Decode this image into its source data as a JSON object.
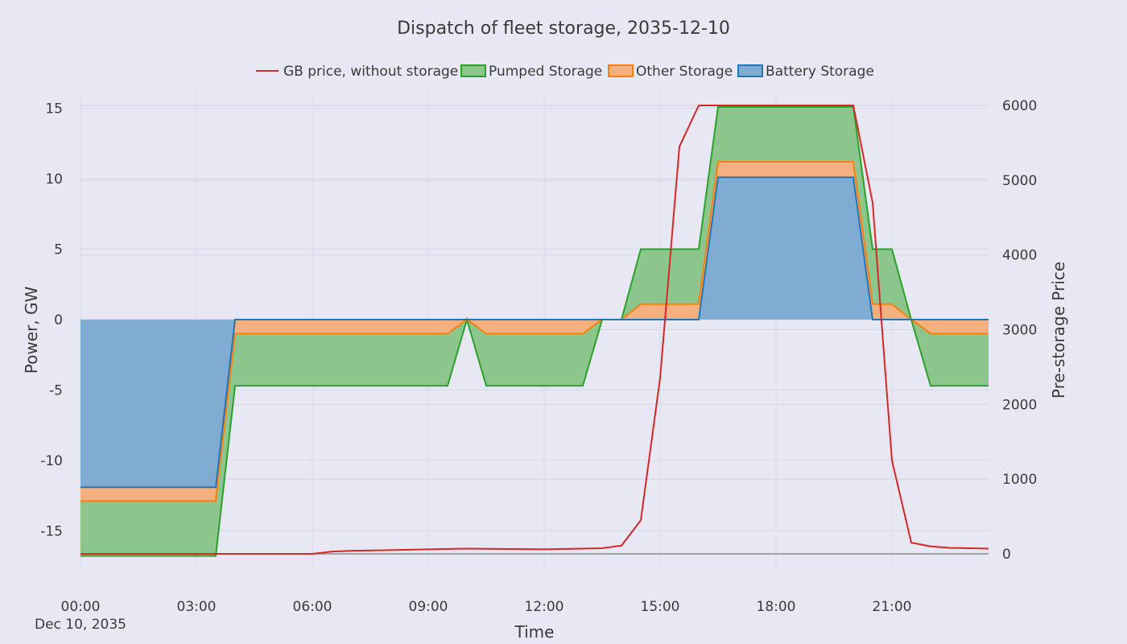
{
  "chart_data": {
    "type": "area",
    "title": "Dispatch of fleet storage, 2035-12-10",
    "xlabel": "Time",
    "ylabel_left": "Power, GW",
    "ylabel_right": "Pre-storage Price",
    "x_tick_labels": [
      "00:00",
      "03:00",
      "06:00",
      "09:00",
      "12:00",
      "15:00",
      "18:00",
      "21:00"
    ],
    "x_date_label": "Dec 10, 2035",
    "x_range_hours": [
      0,
      23.5
    ],
    "y_left_range": [
      -16.5,
      16
    ],
    "y_left_ticks": [
      15,
      10,
      5,
      0,
      -5,
      -10,
      -15
    ],
    "y_right_range": [
      0,
      6000
    ],
    "y_right_ticks": [
      6000,
      5000,
      4000,
      3000,
      2000,
      1000,
      0
    ],
    "legend": {
      "placement": "top",
      "entries": [
        "GB price, without storage",
        "Pumped Storage",
        "Other Storage",
        "Battery Storage"
      ]
    },
    "colors": {
      "price": "#d62728",
      "pumped_fill": "#8cc68d",
      "pumped_line": "#2ca02c",
      "other_fill": "#f5b07f",
      "other_line": "#ff7f0e",
      "battery_fill": "#80abd2",
      "battery_line": "#1f77b4",
      "background": "#e8e8f4"
    },
    "x_hours": [
      0,
      3.5,
      4,
      9.5,
      10,
      10.5,
      13,
      13.5,
      14,
      14.5,
      16,
      16.5,
      20,
      20.5,
      21,
      21.5,
      22,
      23.5
    ],
    "series": [
      {
        "name": "Battery Storage",
        "values": [
          -11.9,
          -11.9,
          0,
          0,
          0,
          0,
          0,
          0,
          0,
          0,
          0,
          10.1,
          10.1,
          0,
          0,
          0,
          0,
          0
        ]
      },
      {
        "name": "Other Storage",
        "values": [
          -0.98,
          -0.98,
          -1.0,
          -1.0,
          0,
          -1.0,
          -1.0,
          0,
          0,
          1.1,
          1.1,
          1.1,
          1.1,
          1.1,
          1.1,
          0,
          -1.0,
          -1.0
        ]
      },
      {
        "name": "Pumped Storage",
        "values": [
          -3.9,
          -3.9,
          -3.7,
          -3.7,
          0,
          -3.7,
          -3.7,
          0,
          0,
          3.9,
          3.9,
          3.9,
          3.9,
          3.9,
          3.9,
          0,
          -3.7,
          -3.7
        ]
      }
    ],
    "price_series": {
      "name": "GB price, without storage",
      "x": [
        0,
        1,
        2,
        3,
        4,
        5,
        6,
        6.5,
        7,
        8,
        9,
        10,
        11,
        12,
        13,
        13.5,
        14,
        14.5,
        15,
        15.5,
        16,
        16.5,
        17,
        18,
        19,
        20,
        20.5,
        21,
        21.5,
        22,
        22.5,
        23,
        23.5
      ],
      "values": [
        0,
        0,
        0,
        0,
        0,
        0,
        0,
        30,
        40,
        50,
        60,
        70,
        65,
        60,
        70,
        75,
        110,
        450,
        2350,
        5450,
        6000,
        6000,
        6000,
        6000,
        6000,
        6000,
        4700,
        1250,
        150,
        100,
        80,
        75,
        70
      ]
    }
  }
}
